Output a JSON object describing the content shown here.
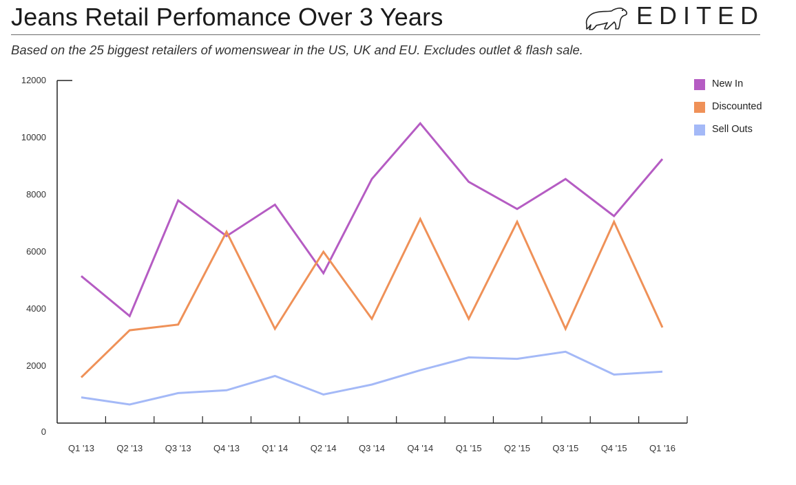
{
  "header": {
    "title": "Jeans Retail Perfomance Over 3 Years",
    "brand": "EDITED",
    "subtitle": "Based on the 25 biggest retailers of womenswear in the US, UK and EU. Excludes outlet & flash sale."
  },
  "icons": {
    "logo": "polar-bear-icon"
  },
  "chart_data": {
    "type": "line",
    "categories": [
      "Q1 '13",
      "Q2 '13",
      "Q3 '13",
      "Q4 '13",
      "Q1' 14",
      "Q2 '14",
      "Q3 '14",
      "Q4 '14",
      "Q1 '15",
      "Q2 '15",
      "Q3 '15",
      "Q4 '15",
      "Q1 '16"
    ],
    "series": [
      {
        "name": "New In",
        "color": "#b55cc3",
        "values": [
          5150,
          3750,
          7800,
          6550,
          7650,
          5250,
          8550,
          10500,
          8450,
          7500,
          8550,
          7250,
          9250
        ]
      },
      {
        "name": "Discounted",
        "color": "#ef9158",
        "values": [
          1600,
          3250,
          3450,
          6700,
          3300,
          6000,
          3650,
          7150,
          3650,
          7050,
          3300,
          7050,
          3350
        ]
      },
      {
        "name": "Sell Outs",
        "color": "#a4b9f7",
        "values": [
          900,
          650,
          1050,
          1150,
          1650,
          1000,
          1350,
          1850,
          2300,
          2250,
          2500,
          1700,
          1800
        ]
      }
    ],
    "yticks": [
      0,
      2000,
      4000,
      6000,
      8000,
      10000,
      12000
    ],
    "ytick_labels": [
      "0",
      "2000",
      "4000",
      "6000",
      "8000",
      "10000",
      "12000"
    ],
    "ylim": [
      0,
      12000
    ],
    "grid": false,
    "legend": "top-right"
  }
}
